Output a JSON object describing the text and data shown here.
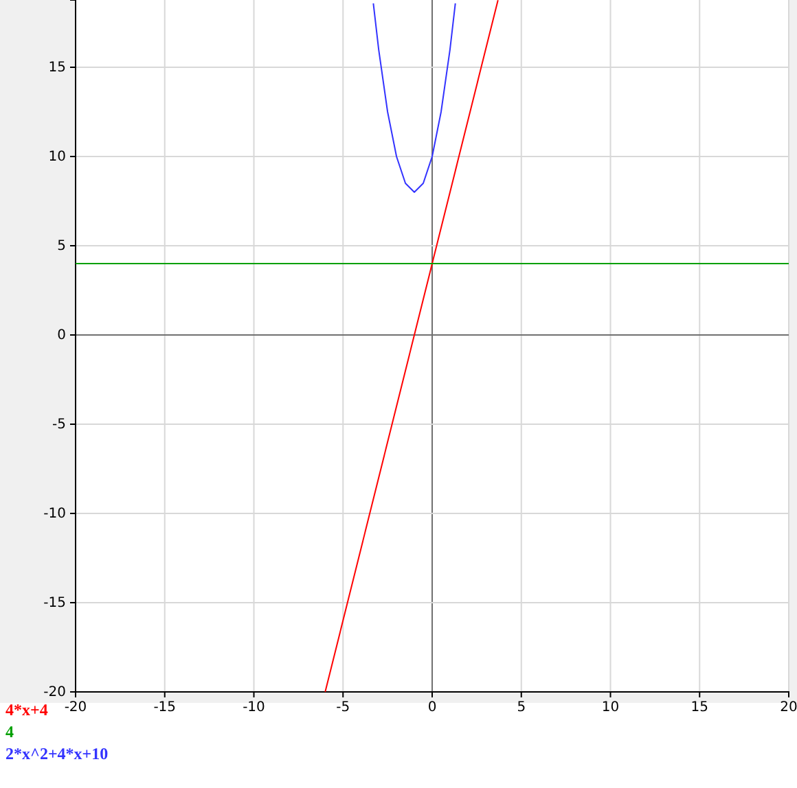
{
  "chart_data": {
    "type": "line",
    "xlim": [
      -20,
      20
    ],
    "ylim": [
      -20,
      18.77
    ],
    "xticks": [
      -20,
      -15,
      -10,
      -5,
      0,
      5,
      10,
      15,
      20
    ],
    "yticks": [
      -20,
      -15,
      -10,
      -5,
      0,
      5,
      10,
      15
    ],
    "grid": true,
    "legend": "bottom left",
    "marker": "none",
    "line_style": "solid",
    "series": [
      {
        "name": "4*x+4",
        "color": "#ff0000",
        "x": [
          -6,
          3.69
        ],
        "values": [
          -20,
          18.76
        ]
      },
      {
        "name": "4",
        "color": "#00a000",
        "x": [
          -20,
          20
        ],
        "values": [
          4,
          4
        ]
      },
      {
        "name": "2*x^2+4*x+10",
        "color": "#3333ff",
        "x": [
          -3.3,
          -3,
          -2.5,
          -2,
          -1.5,
          -1,
          -0.5,
          0,
          0.5,
          1,
          1.3
        ],
        "values": [
          18.58,
          16,
          12.5,
          10,
          8.5,
          8,
          8.5,
          10,
          12.5,
          16,
          18.58
        ]
      }
    ]
  }
}
